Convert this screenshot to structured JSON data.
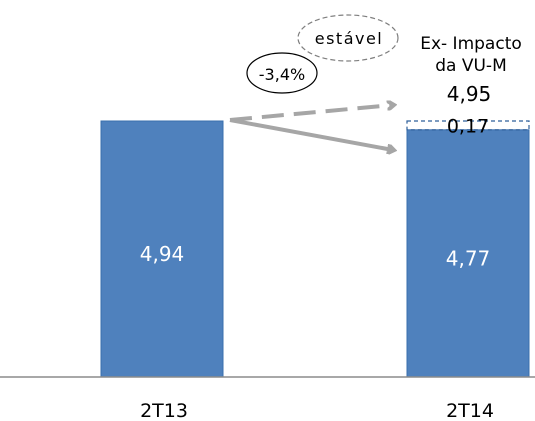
{
  "chart_data": {
    "type": "bar",
    "categories": [
      "2T13",
      "2T14"
    ],
    "values": [
      4.94,
      4.77
    ],
    "value_labels": [
      "4,94",
      "4,77"
    ],
    "adjustment": {
      "category": "2T14",
      "base": 4.77,
      "value": 0.17,
      "label": "0,17",
      "total": 4.95,
      "total_label": "4,95",
      "heading_line1": "Ex- Impacto",
      "heading_line2": "da VU-M"
    },
    "annotations": {
      "change": "-3,4%",
      "stable": "estável"
    },
    "colors": {
      "bar": "#4f81bd",
      "bar_edge": "#3a6fad",
      "adjustment_outline": "#2e5f9a",
      "arrow": "#a6a6a6",
      "bar_text": "#ffffff",
      "text": "#000000"
    },
    "title": "",
    "xlabel": "",
    "ylabel": ""
  }
}
